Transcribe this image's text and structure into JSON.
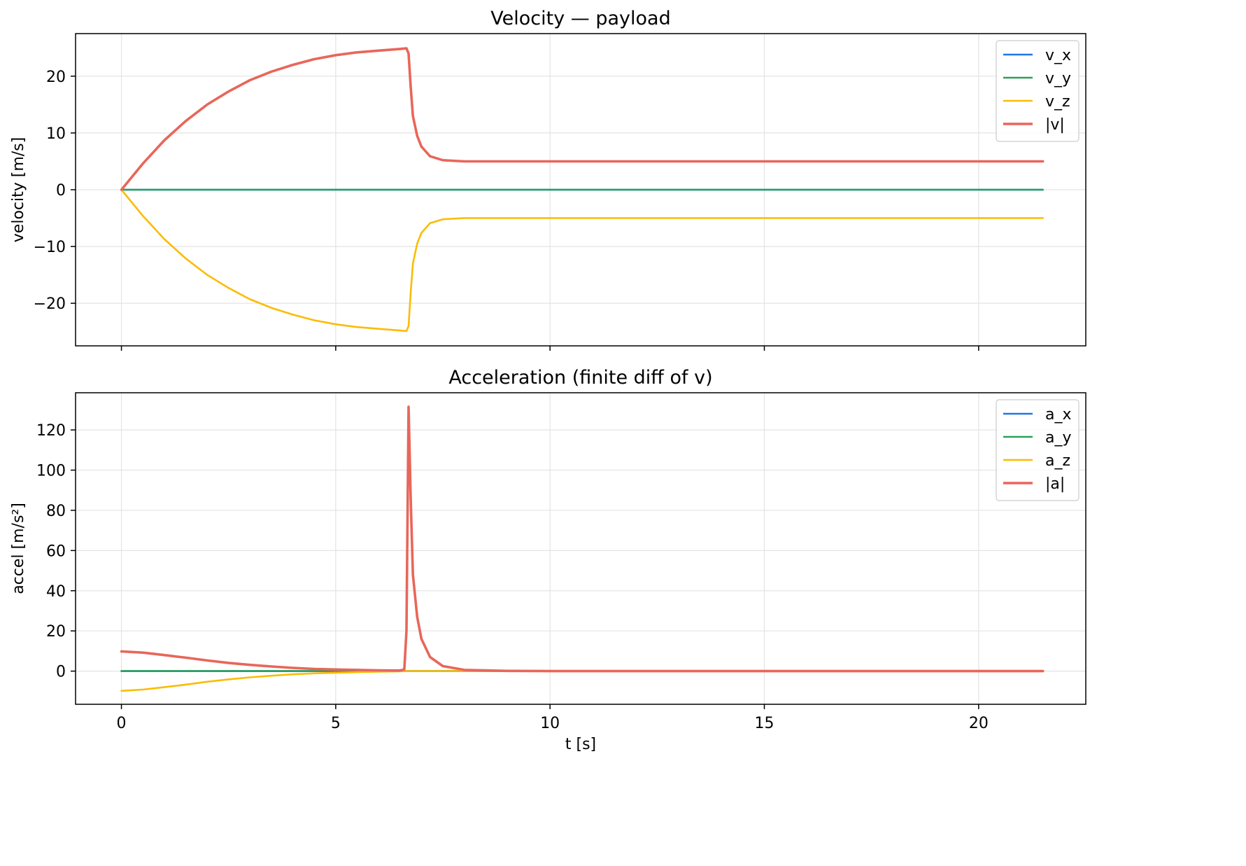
{
  "chart_data": [
    {
      "type": "line",
      "title": "Velocity — payload",
      "xlabel": "",
      "ylabel": "velocity [m/s]",
      "xlim": [
        -1.07,
        22.5
      ],
      "ylim": [
        -27.5,
        27.5
      ],
      "xticks": [
        0,
        5,
        10,
        15,
        20
      ],
      "yticks": [
        -20,
        -10,
        0,
        10,
        20
      ],
      "ytick_labels": [
        "−20",
        "−10",
        "0",
        "10",
        "20"
      ],
      "grid": true,
      "legend_position": "top-right",
      "series": [
        {
          "name": "v_x",
          "color": "#1f77e8",
          "points": [
            [
              0,
              0
            ],
            [
              21.5,
              0
            ]
          ]
        },
        {
          "name": "v_y",
          "color": "#2ca05a",
          "points": [
            [
              0,
              0
            ],
            [
              21.5,
              0
            ]
          ]
        },
        {
          "name": "v_z",
          "color": "#fbbc04",
          "points": [
            [
              0,
              0
            ],
            [
              0.5,
              -4.6
            ],
            [
              1,
              -8.7
            ],
            [
              1.5,
              -12.1
            ],
            [
              2,
              -15
            ],
            [
              2.5,
              -17.3
            ],
            [
              3,
              -19.3
            ],
            [
              3.5,
              -20.8
            ],
            [
              4,
              -22
            ],
            [
              4.5,
              -23
            ],
            [
              5,
              -23.7
            ],
            [
              5.5,
              -24.2
            ],
            [
              6,
              -24.5
            ],
            [
              6.5,
              -24.8
            ],
            [
              6.65,
              -24.9
            ],
            [
              6.7,
              -24
            ],
            [
              6.75,
              -18
            ],
            [
              6.8,
              -13
            ],
            [
              6.9,
              -9.5
            ],
            [
              7,
              -7.6
            ],
            [
              7.2,
              -5.9
            ],
            [
              7.5,
              -5.2
            ],
            [
              8,
              -5
            ],
            [
              10,
              -5
            ],
            [
              15,
              -5
            ],
            [
              21.5,
              -5
            ]
          ]
        },
        {
          "name": "|v|",
          "color": "#e8665a",
          "points": [
            [
              0,
              0
            ],
            [
              0.5,
              4.6
            ],
            [
              1,
              8.7
            ],
            [
              1.5,
              12.1
            ],
            [
              2,
              15
            ],
            [
              2.5,
              17.3
            ],
            [
              3,
              19.3
            ],
            [
              3.5,
              20.8
            ],
            [
              4,
              22
            ],
            [
              4.5,
              23
            ],
            [
              5,
              23.7
            ],
            [
              5.5,
              24.2
            ],
            [
              6,
              24.5
            ],
            [
              6.5,
              24.8
            ],
            [
              6.65,
              24.9
            ],
            [
              6.7,
              24
            ],
            [
              6.75,
              18
            ],
            [
              6.8,
              13
            ],
            [
              6.9,
              9.5
            ],
            [
              7,
              7.6
            ],
            [
              7.2,
              5.9
            ],
            [
              7.5,
              5.2
            ],
            [
              8,
              5
            ],
            [
              10,
              5
            ],
            [
              15,
              5
            ],
            [
              21.5,
              5
            ]
          ]
        }
      ]
    },
    {
      "type": "line",
      "title": "Acceleration (finite diff of v)",
      "xlabel": "t [s]",
      "ylabel": "accel [m/s²]",
      "xlim": [
        -1.07,
        22.5
      ],
      "ylim": [
        -16.5,
        138.5
      ],
      "xticks": [
        0,
        5,
        10,
        15,
        20
      ],
      "yticks": [
        0,
        20,
        40,
        60,
        80,
        100,
        120
      ],
      "ytick_labels": [
        "0",
        "20",
        "40",
        "60",
        "80",
        "100",
        "120"
      ],
      "grid": true,
      "legend_position": "top-right",
      "series": [
        {
          "name": "a_x",
          "color": "#1f77e8",
          "points": [
            [
              0,
              0
            ],
            [
              21.5,
              0
            ]
          ]
        },
        {
          "name": "a_y",
          "color": "#2ca05a",
          "points": [
            [
              0,
              0
            ],
            [
              21.5,
              0
            ]
          ]
        },
        {
          "name": "a_z",
          "color": "#fbbc04",
          "points": [
            [
              0,
              -9.8
            ],
            [
              0.5,
              -9.2
            ],
            [
              1,
              -8
            ],
            [
              1.5,
              -6.7
            ],
            [
              2,
              -5.3
            ],
            [
              2.5,
              -4.1
            ],
            [
              3,
              -3.1
            ],
            [
              3.5,
              -2.3
            ],
            [
              4,
              -1.6
            ],
            [
              4.5,
              -1.1
            ],
            [
              5,
              -0.8
            ],
            [
              5.5,
              -0.5
            ],
            [
              6,
              -0.3
            ],
            [
              6.5,
              -0.1
            ],
            [
              6.6,
              0
            ],
            [
              21.5,
              0
            ]
          ]
        },
        {
          "name": "|a|",
          "color": "#e8665a",
          "points": [
            [
              0,
              9.8
            ],
            [
              0.5,
              9.2
            ],
            [
              1,
              8
            ],
            [
              1.5,
              6.7
            ],
            [
              2,
              5.3
            ],
            [
              2.5,
              4.1
            ],
            [
              3,
              3.1
            ],
            [
              3.5,
              2.3
            ],
            [
              4,
              1.6
            ],
            [
              4.5,
              1.1
            ],
            [
              5,
              0.8
            ],
            [
              5.5,
              0.6
            ],
            [
              6,
              0.4
            ],
            [
              6.5,
              0.3
            ],
            [
              6.6,
              0.8
            ],
            [
              6.65,
              20
            ],
            [
              6.7,
              131.5
            ],
            [
              6.75,
              85
            ],
            [
              6.8,
              48
            ],
            [
              6.9,
              27
            ],
            [
              7,
              16
            ],
            [
              7.2,
              7
            ],
            [
              7.5,
              2.5
            ],
            [
              8,
              0.6
            ],
            [
              9,
              0.1
            ],
            [
              10,
              0
            ],
            [
              21.5,
              0
            ]
          ]
        }
      ]
    }
  ]
}
